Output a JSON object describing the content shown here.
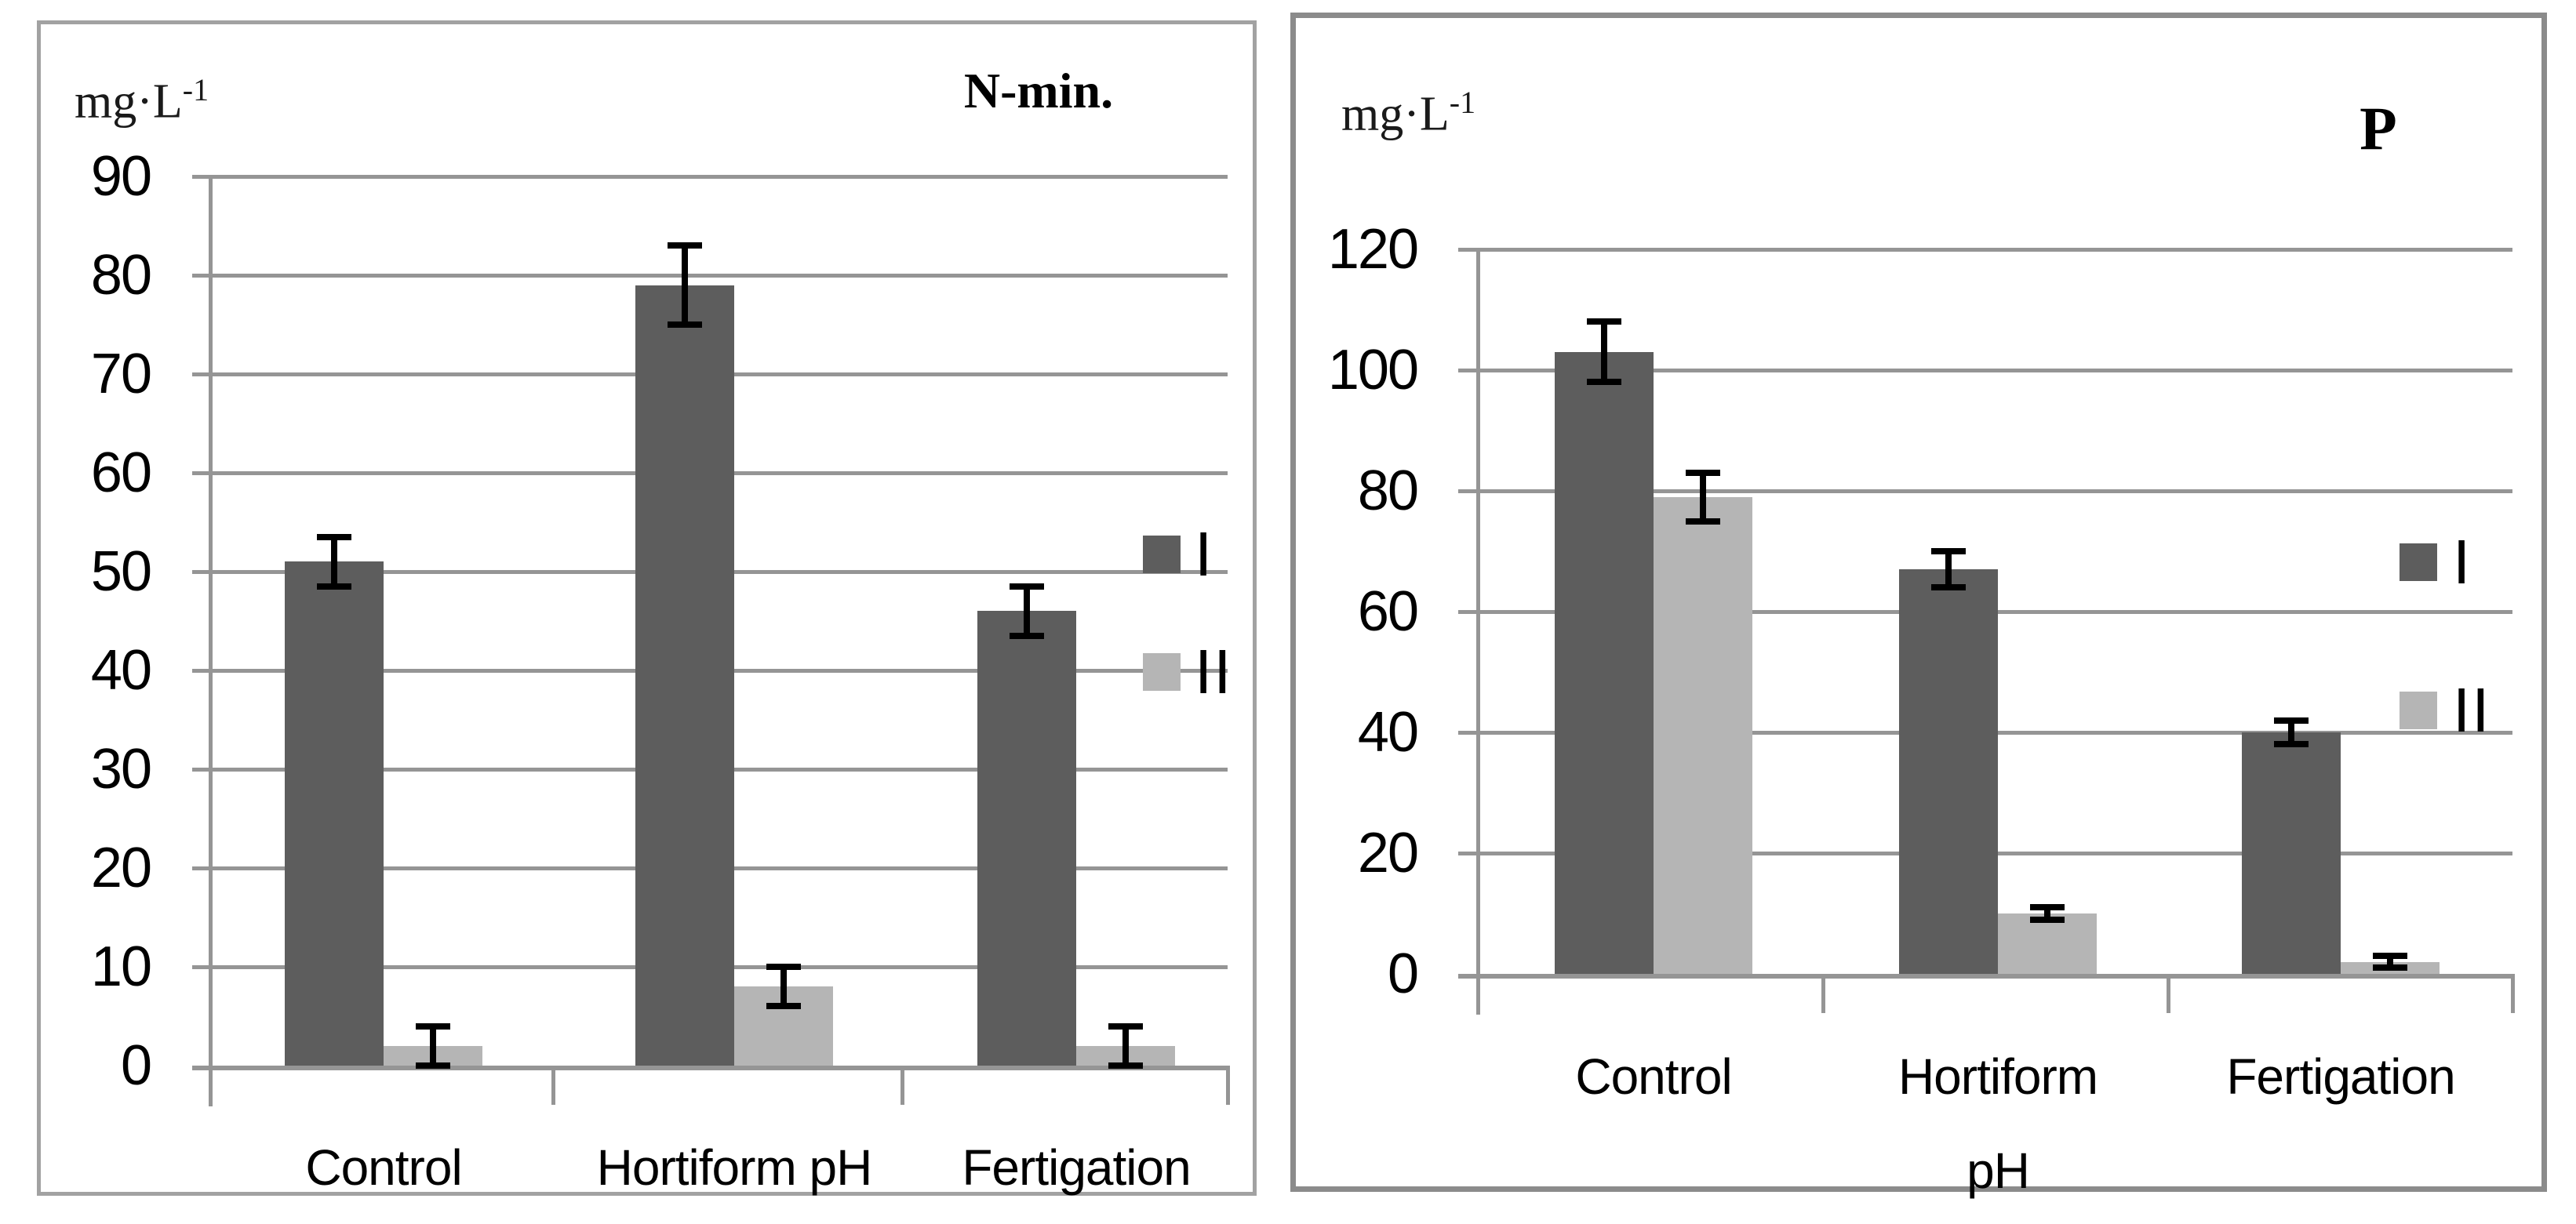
{
  "colors": {
    "series_I": "#5d5d5d",
    "series_II": "#b5b5b5",
    "gridline": "#959595",
    "axis": "#959595",
    "error_bar": "#000000",
    "panel_border_left_chart": "#a2a2a2",
    "panel_border_right_chart": "#8b8b8b",
    "text": "#000000"
  },
  "chart_data": [
    {
      "type": "bar",
      "title": "N-min.",
      "ylabel": "mg·L⁻¹",
      "ylabel_parts": {
        "base": "mg·L",
        "sup": "-1"
      },
      "categories": [
        "Control",
        "Hortiform pH",
        "Fertigation"
      ],
      "wrap_category_labels": false,
      "series": [
        {
          "name": "I",
          "values": [
            51,
            79,
            46
          ],
          "errors": [
            2.5,
            4,
            2.5
          ]
        },
        {
          "name": "II",
          "values": [
            2,
            8,
            2
          ],
          "errors": [
            2,
            2,
            2
          ]
        }
      ],
      "ylim": [
        0,
        90
      ],
      "ytick_step": 10,
      "ytick_labels": [
        "0",
        "10",
        "20",
        "30",
        "40",
        "50",
        "60",
        "70",
        "80",
        "90"
      ],
      "grid": true,
      "legend_position": "right",
      "legend_entries": [
        "I",
        "II"
      ]
    },
    {
      "type": "bar",
      "title": "P",
      "ylabel": "mg·L⁻¹",
      "ylabel_parts": {
        "base": "mg·L",
        "sup": "-1"
      },
      "categories": [
        "Control",
        "Hortiform pH",
        "Fertigation"
      ],
      "wrap_category_labels": true,
      "series": [
        {
          "name": "I",
          "values": [
            103,
            67,
            40
          ],
          "errors": [
            5,
            3,
            2
          ]
        },
        {
          "name": "II",
          "values": [
            79,
            10,
            2
          ],
          "errors": [
            4,
            1,
            1
          ]
        }
      ],
      "ylim": [
        0,
        120
      ],
      "ytick_step": 20,
      "ytick_labels": [
        "0",
        "20",
        "40",
        "60",
        "80",
        "100",
        "120"
      ],
      "grid": true,
      "legend_position": "right",
      "legend_entries": [
        "I",
        "II"
      ]
    }
  ]
}
